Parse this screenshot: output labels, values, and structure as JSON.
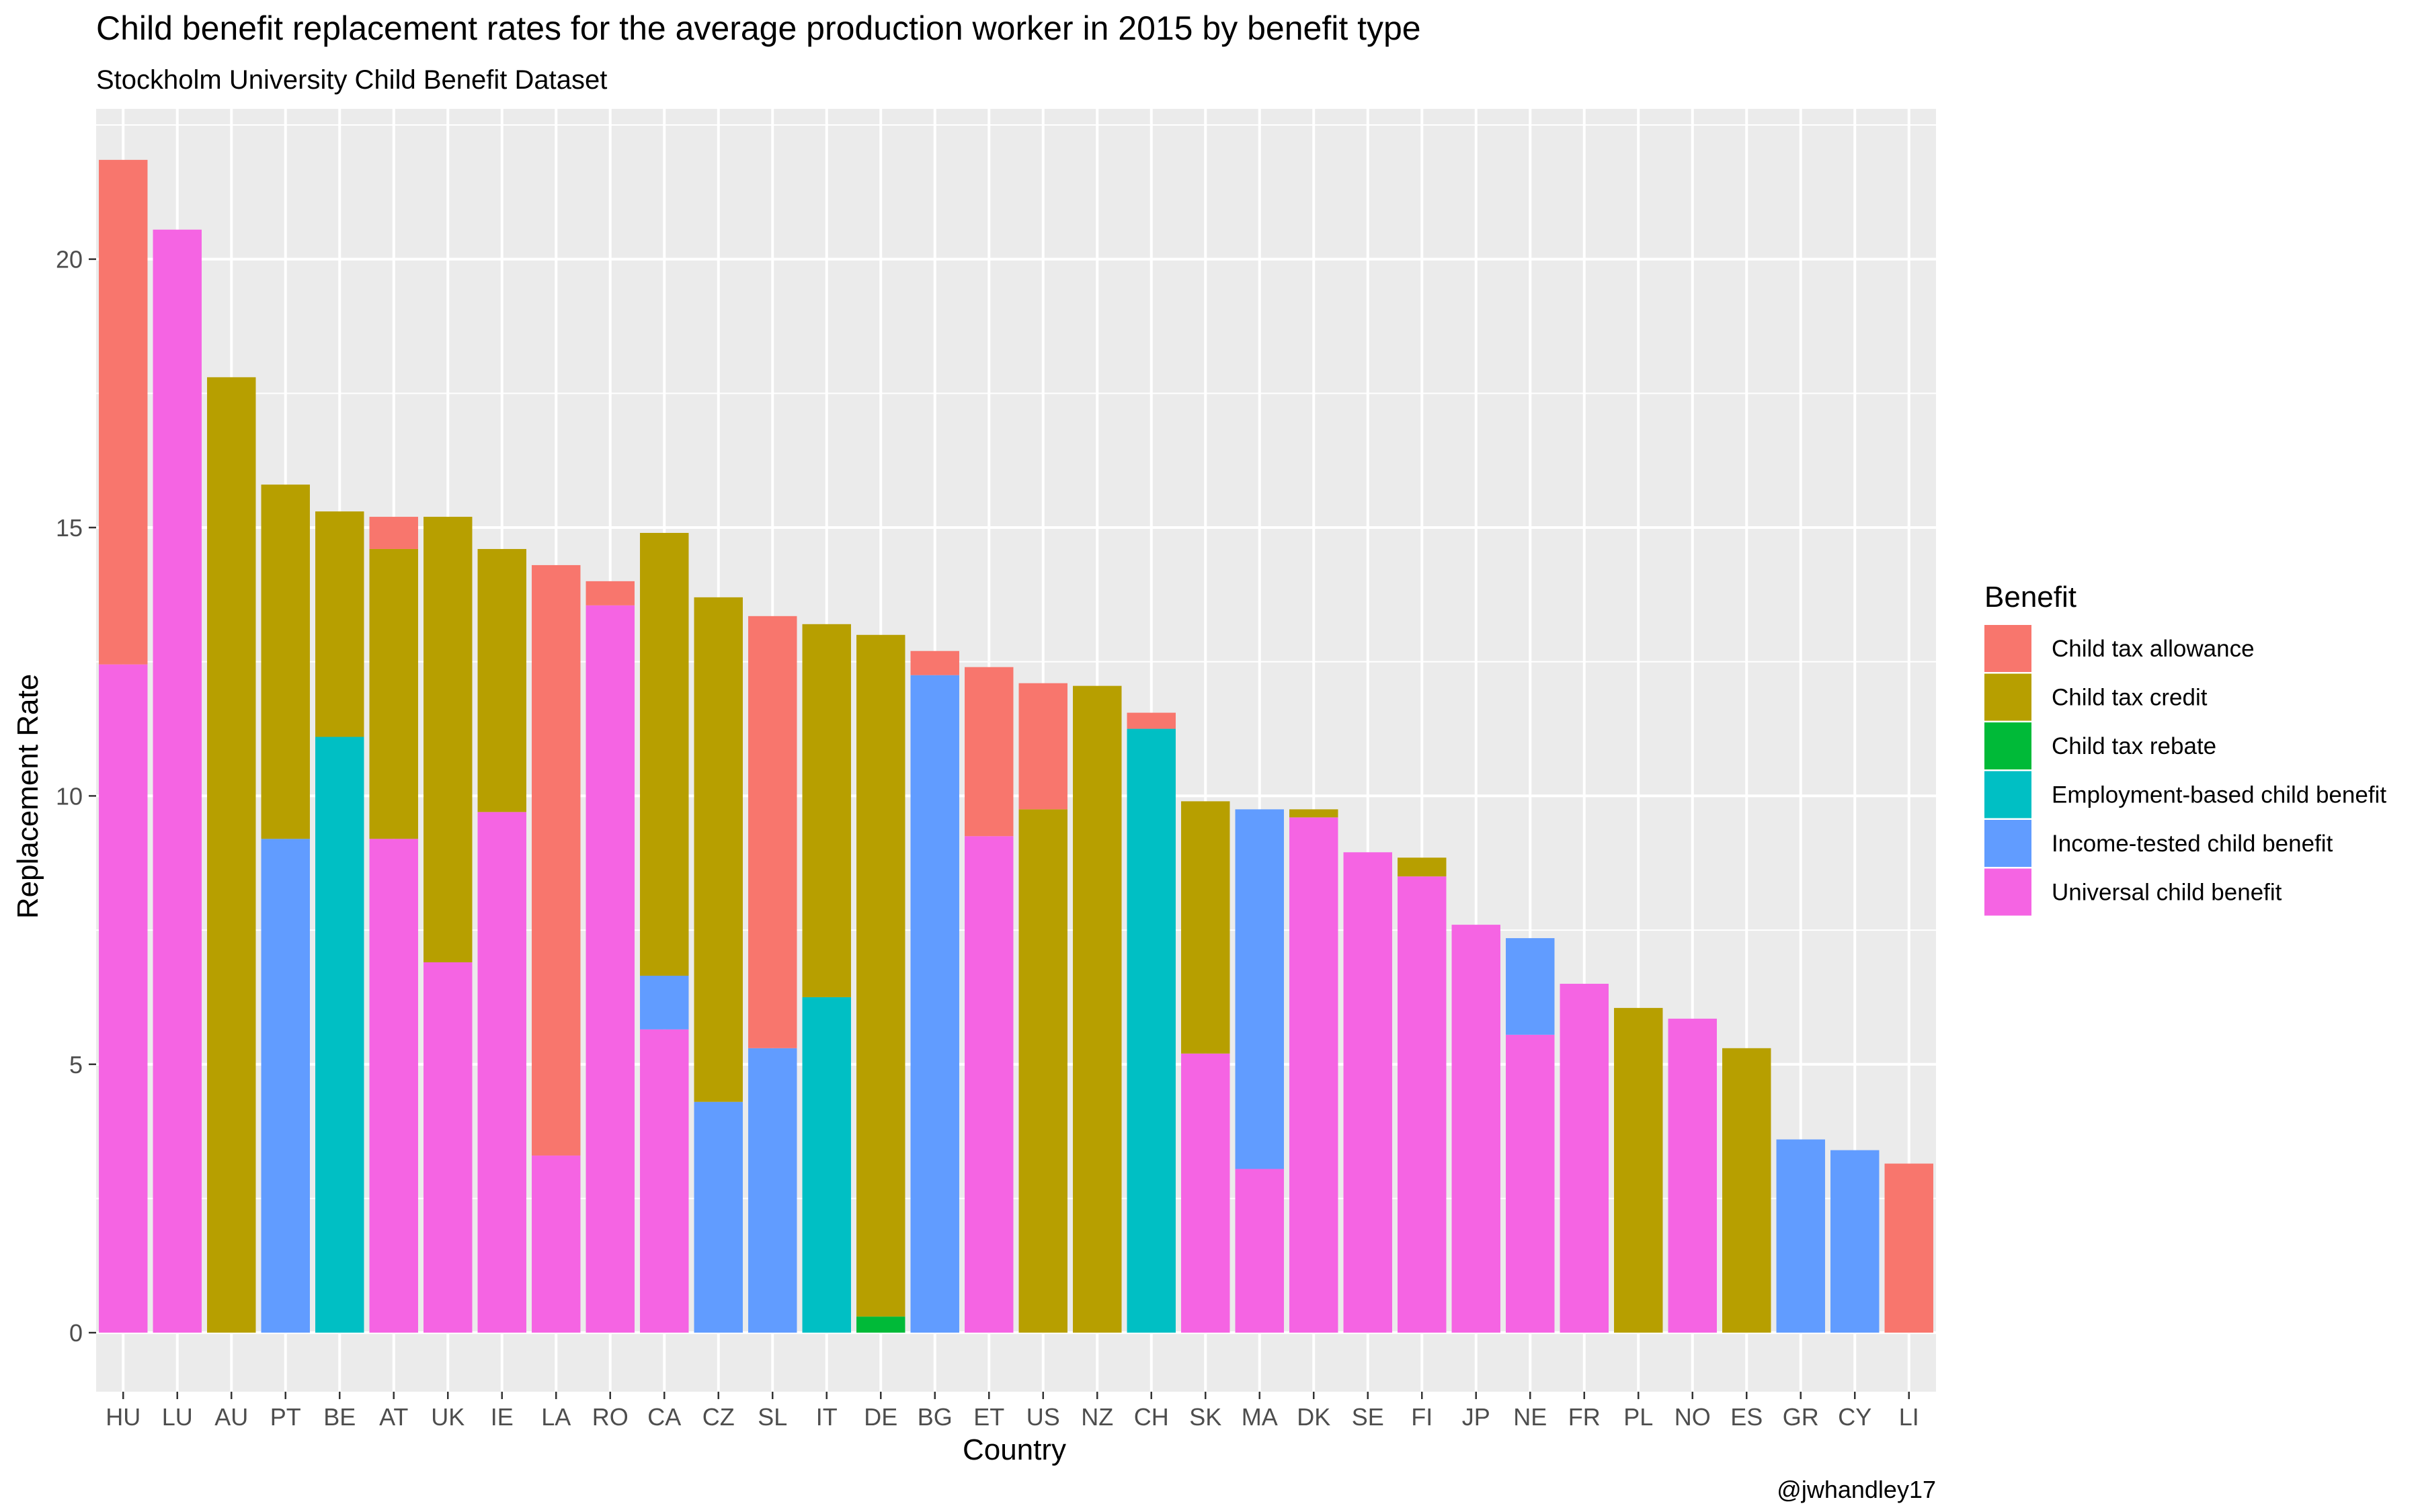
{
  "chart_data": {
    "type": "bar",
    "stacked": true,
    "title": "Child benefit replacement rates for the average production worker in 2015 by benefit type",
    "subtitle": "Stockholm University Child Benefit Dataset",
    "xlabel": "Country",
    "ylabel": "Replacement Rate",
    "caption": "@jwhandley17",
    "ylim": [
      -1.1,
      22.8
    ],
    "yticks": [
      0,
      5,
      10,
      15,
      20
    ],
    "grid": true,
    "legend": {
      "title": "Benefit",
      "placement": "right",
      "items": [
        {
          "name": "Child tax allowance",
          "color": "#F8766D"
        },
        {
          "name": "Child tax credit",
          "color": "#B79F00"
        },
        {
          "name": "Child tax rebate",
          "color": "#00BA38"
        },
        {
          "name": "Employment-based child benefit",
          "color": "#00BFC4"
        },
        {
          "name": "Income-tested child benefit",
          "color": "#619CFF"
        },
        {
          "name": "Universal child benefit",
          "color": "#F564E3"
        }
      ]
    },
    "categories": [
      "HU",
      "LU",
      "AU",
      "PT",
      "BE",
      "AT",
      "UK",
      "IE",
      "LA",
      "RO",
      "CA",
      "CZ",
      "SL",
      "IT",
      "DE",
      "BG",
      "ET",
      "US",
      "NZ",
      "CH",
      "SK",
      "MA",
      "DK",
      "SE",
      "FI",
      "JP",
      "NE",
      "FR",
      "PL",
      "NO",
      "ES",
      "GR",
      "CY",
      "LI"
    ],
    "series": [
      {
        "name": "Universal child benefit",
        "color": "#F564E3",
        "values": [
          12.45,
          20.55,
          0,
          0,
          0,
          9.2,
          6.9,
          9.7,
          3.3,
          13.55,
          5.65,
          0,
          0,
          0,
          0,
          0,
          9.25,
          0,
          0,
          0,
          5.2,
          3.05,
          9.6,
          8.95,
          8.5,
          7.6,
          5.55,
          6.5,
          0,
          5.85,
          0,
          0,
          0,
          0
        ]
      },
      {
        "name": "Income-tested child benefit",
        "color": "#619CFF",
        "values": [
          0,
          0,
          0,
          9.2,
          0,
          0,
          0,
          0,
          0,
          0,
          1.0,
          4.3,
          5.3,
          0,
          0,
          12.25,
          0,
          0,
          0,
          0,
          0,
          6.7,
          0,
          0,
          0,
          0,
          1.8,
          0,
          0,
          0,
          0,
          3.6,
          3.4,
          0
        ]
      },
      {
        "name": "Employment-based child benefit",
        "color": "#00BFC4",
        "values": [
          0,
          0,
          0,
          0,
          11.1,
          0,
          0,
          0,
          0,
          0,
          0,
          0,
          0,
          6.25,
          0,
          0,
          0,
          0,
          0,
          11.25,
          0,
          0,
          0,
          0,
          0,
          0,
          0,
          0,
          0,
          0,
          0,
          0,
          0,
          0
        ]
      },
      {
        "name": "Child tax rebate",
        "color": "#00BA38",
        "values": [
          0,
          0,
          0,
          0,
          0,
          0,
          0,
          0,
          0,
          0,
          0,
          0,
          0,
          0,
          0.3,
          0,
          0,
          0,
          0,
          0,
          0,
          0,
          0,
          0,
          0,
          0,
          0,
          0,
          0,
          0,
          0,
          0,
          0,
          0
        ]
      },
      {
        "name": "Child tax credit",
        "color": "#B79F00",
        "values": [
          0,
          0,
          17.8,
          6.6,
          4.2,
          5.4,
          8.3,
          4.9,
          0,
          0,
          8.25,
          9.4,
          0,
          6.95,
          12.7,
          0,
          0,
          9.75,
          12.05,
          0,
          4.7,
          0,
          0.15,
          0,
          0.35,
          0,
          0,
          0,
          6.05,
          0,
          5.3,
          0,
          0,
          0
        ]
      },
      {
        "name": "Child tax allowance",
        "color": "#F8766D",
        "values": [
          9.4,
          0,
          0,
          0,
          0,
          0.6,
          0,
          0,
          11.0,
          0.45,
          0,
          0,
          8.05,
          0,
          0,
          0.45,
          3.15,
          2.35,
          0,
          0.3,
          0,
          0,
          0,
          0,
          0,
          0,
          0,
          0,
          0,
          0,
          0,
          0,
          0,
          3.15
        ]
      }
    ]
  }
}
